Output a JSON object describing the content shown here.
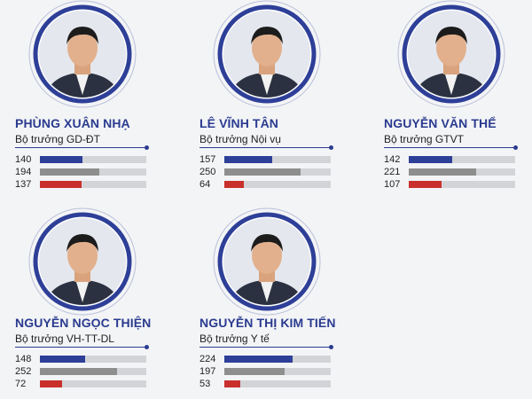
{
  "colors": {
    "bar_1": "#2e3f98",
    "bar_2": "#8e8e8e",
    "bar_3": "#c9302c",
    "accent": "#2a3b8f"
  },
  "chart_data": {
    "type": "bar",
    "value_max": 400,
    "people": [
      {
        "name": "PHÙNG XUÂN NHẠ",
        "role": "Bộ trưởng GD-ĐT",
        "values": [
          140,
          194,
          137
        ]
      },
      {
        "name": "LÊ VĨNH TÂN",
        "role": "Bộ trưởng Nội vụ",
        "values": [
          157,
          250,
          64
        ]
      },
      {
        "name": "NGUYỄN VĂN THỂ",
        "role": "Bộ trưởng GTVT",
        "values": [
          142,
          221,
          107
        ]
      },
      {
        "name": "NGUYỄN NGỌC THIỆN",
        "role": "Bộ trưởng VH-TT-DL",
        "values": [
          148,
          252,
          72
        ]
      },
      {
        "name": "NGUYỄN THỊ KIM TIẾN",
        "role": "Bộ trưởng Y tế",
        "values": [
          224,
          197,
          53
        ]
      }
    ]
  }
}
